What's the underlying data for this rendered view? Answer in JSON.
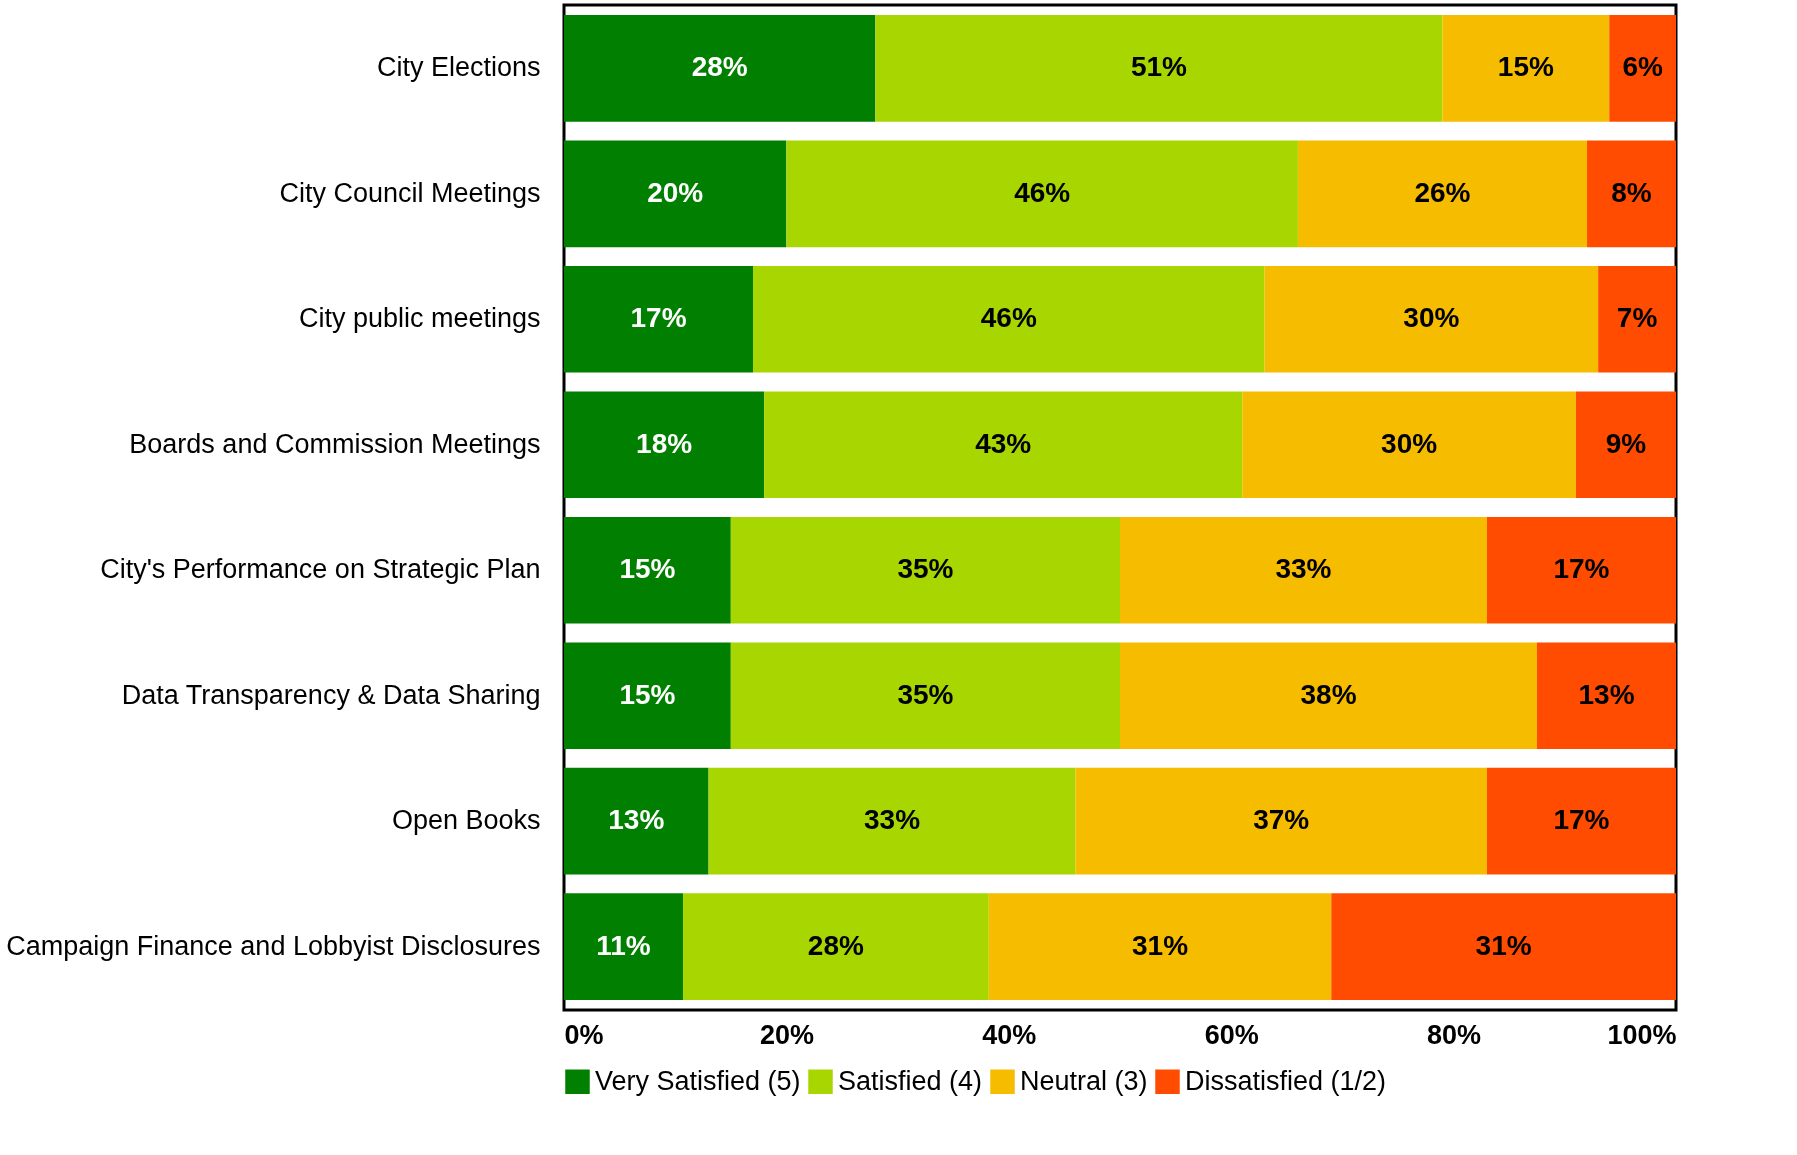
{
  "chart_data": {
    "type": "bar",
    "orientation": "horizontal",
    "stacked": true,
    "categories": [
      "City Elections",
      "City Council Meetings",
      "City public meetings",
      "Boards and Commission Meetings",
      "City's Performance on Strategic Plan",
      "Data Transparency & Data Sharing",
      "Open Books",
      "Campaign Finance and Lobbyist Disclosures"
    ],
    "series": [
      {
        "name": "Very Satisfied (5)",
        "color": "#007f00",
        "values": [
          28,
          20,
          17,
          18,
          15,
          15,
          13,
          10.7
        ],
        "value_labels": [
          "28%",
          "20%",
          "17%",
          "18%",
          "15%",
          "15%",
          "13%",
          "11%"
        ]
      },
      {
        "name": "Satisfied (4)",
        "color": "#a8d600",
        "values": [
          51,
          46,
          46,
          43,
          35,
          35,
          33,
          27.5
        ],
        "value_labels": [
          "51%",
          "46%",
          "46%",
          "43%",
          "35%",
          "35%",
          "33%",
          "28%"
        ]
      },
      {
        "name": "Neutral (3)",
        "color": "#f5bc00",
        "values": [
          15,
          26,
          30,
          30,
          33,
          37.5,
          37,
          30.8
        ],
        "value_labels": [
          "15%",
          "26%",
          "30%",
          "30%",
          "33%",
          "38%",
          "37%",
          "31%"
        ]
      },
      {
        "name": "Dissatisfied (1/2)",
        "color": "#ff4c00",
        "values": [
          6,
          8,
          7,
          9,
          17,
          12.5,
          17,
          31
        ],
        "value_labels": [
          "6%",
          "8%",
          "7%",
          "9%",
          "17%",
          "13%",
          "17%",
          "31%"
        ]
      }
    ],
    "xlim": [
      0,
      100
    ],
    "xticks": [
      {
        "value": 0,
        "label": "0%"
      },
      {
        "value": 20,
        "label": "20%"
      },
      {
        "value": 40,
        "label": "40%"
      },
      {
        "value": 60,
        "label": "60%"
      },
      {
        "value": 80,
        "label": "80%"
      },
      {
        "value": 100,
        "label": "100%"
      }
    ],
    "grid": false,
    "legend": "bottom"
  }
}
